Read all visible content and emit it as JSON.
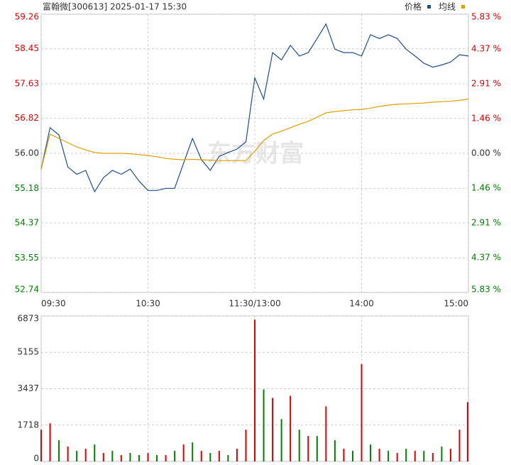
{
  "chart_data": [
    {
      "type": "line",
      "title": "富翰微[300613] 2025-01-17 15:30",
      "watermark": "东方财富",
      "x": [
        0,
        5,
        10,
        15,
        20,
        25,
        30,
        35,
        40,
        45,
        50,
        55,
        60,
        65,
        70,
        75,
        80,
        85,
        90,
        95,
        100,
        105,
        110,
        115,
        120,
        125,
        130,
        135,
        140,
        145,
        150,
        155,
        160,
        165,
        170,
        175,
        180,
        185,
        190,
        195,
        200,
        205,
        210,
        215,
        220,
        225,
        230,
        235,
        240
      ],
      "xlim": [
        0,
        240
      ],
      "xticks": [
        {
          "value": 0,
          "label": "09:30"
        },
        {
          "value": 60,
          "label": "10:30"
        },
        {
          "value": 120,
          "label": "11:30/13:00"
        },
        {
          "value": 180,
          "label": "14:00"
        },
        {
          "value": 240,
          "label": "15:00"
        }
      ],
      "ylim": [
        52.74,
        59.26
      ],
      "yticks": [
        52.74,
        53.55,
        54.37,
        55.18,
        {
          "value": 56,
          "label": "56.00"
        },
        56.82,
        57.63,
        58.45,
        59.26
      ],
      "y2lim": [
        -5.83,
        5.83
      ],
      "y2ticks": [
        {
          "value": -5.83,
          "label": "5.83 %"
        },
        {
          "value": -4.37,
          "label": "4.37 %"
        },
        {
          "value": -2.91,
          "label": "2.91 %"
        },
        {
          "value": -1.46,
          "label": "1.46 %"
        },
        {
          "value": 0,
          "label": "0.00 %"
        },
        {
          "value": 1.46,
          "label": "1.46 %"
        },
        {
          "value": 2.91,
          "label": "2.91 %"
        },
        {
          "value": 4.37,
          "label": "4.37 %"
        },
        {
          "value": 5.83,
          "label": "5.83 %"
        }
      ],
      "reference": 56,
      "up_color": "#e00000",
      "down_color": "#008000",
      "flat_color": "#333333",
      "grid": true,
      "series": [
        {
          "name": "价格",
          "color": "#1d4f91",
          "values": [
            55.63,
            56.6,
            56.43,
            55.68,
            55.51,
            55.6,
            55.1,
            55.43,
            55.6,
            55.51,
            55.63,
            55.35,
            55.13,
            55.13,
            55.18,
            55.18,
            55.77,
            56.35,
            55.85,
            55.6,
            55.93,
            56.02,
            56.1,
            56.27,
            57.77,
            57.27,
            58.36,
            58.19,
            58.53,
            58.28,
            58.36,
            58.69,
            59.03,
            58.44,
            58.36,
            58.36,
            58.28,
            58.78,
            58.69,
            58.78,
            58.69,
            58.44,
            58.28,
            58.11,
            58.02,
            58.07,
            58.14,
            58.31,
            58.28
          ]
        },
        {
          "name": "均线",
          "color": "#e0a000",
          "values": [
            55.63,
            56.45,
            56.35,
            56.25,
            56.15,
            56.08,
            56.02,
            56.0,
            56.0,
            56.0,
            55.99,
            55.97,
            55.95,
            55.92,
            55.88,
            55.86,
            55.85,
            55.86,
            55.85,
            55.84,
            55.83,
            55.83,
            55.83,
            55.83,
            56.05,
            56.3,
            56.45,
            56.52,
            56.6,
            56.68,
            56.75,
            56.85,
            56.95,
            56.98,
            57.0,
            57.02,
            57.03,
            57.06,
            57.1,
            57.13,
            57.15,
            57.16,
            57.17,
            57.18,
            57.2,
            57.21,
            57.22,
            57.24,
            57.27
          ]
        }
      ]
    },
    {
      "type": "bar",
      "x": [
        0,
        5,
        10,
        15,
        20,
        25,
        30,
        35,
        40,
        45,
        50,
        55,
        60,
        65,
        70,
        75,
        80,
        85,
        90,
        95,
        100,
        105,
        110,
        115,
        120,
        125,
        130,
        135,
        140,
        145,
        150,
        155,
        160,
        165,
        170,
        175,
        180,
        185,
        190,
        195,
        200,
        205,
        210,
        215,
        220,
        225,
        230,
        235,
        240
      ],
      "xlim": [
        0,
        240
      ],
      "xticks": [
        0,
        60,
        120,
        180,
        240
      ],
      "ylim": [
        0,
        6873
      ],
      "yticks": [
        0,
        1718,
        3437,
        5155,
        6873
      ],
      "grid": true,
      "values": [
        1500,
        1800,
        1000,
        700,
        500,
        600,
        800,
        400,
        500,
        300,
        400,
        300,
        400,
        300,
        300,
        500,
        800,
        900,
        500,
        400,
        500,
        300,
        600,
        1500,
        6700,
        3400,
        3000,
        2000,
        3100,
        1500,
        1200,
        1200,
        2600,
        1000,
        600,
        500,
        4600,
        800,
        600,
        500,
        400,
        600,
        500,
        500,
        400,
        700,
        600,
        1500,
        2800
      ],
      "colors": [
        "#e00000",
        "#e00000",
        "#008000",
        "#e00000",
        "#008000",
        "#e00000",
        "#008000",
        "#e00000",
        "#008000",
        "#e00000",
        "#008000",
        "#008000",
        "#e00000",
        "#008000",
        "#e00000",
        "#008000",
        "#e00000",
        "#008000",
        "#e00000",
        "#008000",
        "#e00000",
        "#008000",
        "#e00000",
        "#e00000",
        "#e00000",
        "#008000",
        "#e00000",
        "#008000",
        "#e00000",
        "#008000",
        "#e00000",
        "#008000",
        "#e00000",
        "#008000",
        "#e00000",
        "#008000",
        "#e00000",
        "#008000",
        "#e00000",
        "#008000",
        "#e00000",
        "#008000",
        "#e00000",
        "#008000",
        "#e00000",
        "#008000",
        "#e00000",
        "#e00000",
        "#e00000"
      ]
    }
  ]
}
